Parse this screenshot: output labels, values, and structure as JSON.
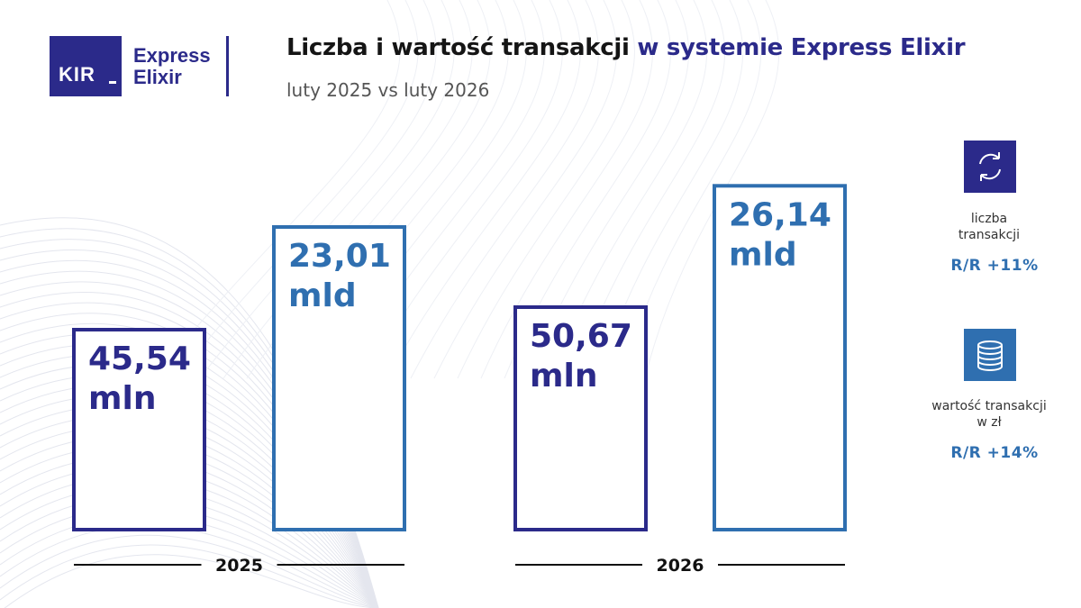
{
  "logo": {
    "kir": "KIR",
    "brand_line1": "Express",
    "brand_line2": "Elixir"
  },
  "header": {
    "title_part1": "Liczba i wartość transakcji",
    "title_part2": "w systemie Express Elixir",
    "subtitle": "luty 2025 vs luty 2026"
  },
  "colors": {
    "navy": "#2b2a8a",
    "blue": "#2f6fb0"
  },
  "chart_data": {
    "type": "bar",
    "categories": [
      "2025",
      "2026"
    ],
    "series": [
      {
        "name": "liczba transakcji",
        "values": [
          45.54,
          50.67
        ],
        "unit": "mln",
        "labels": [
          "45,54",
          "50,67"
        ],
        "color": "#2b2a8a"
      },
      {
        "name": "wartość transakcji w zł",
        "values": [
          23.01,
          26.14
        ],
        "unit": "mld",
        "labels": [
          "23,01",
          "26,14"
        ],
        "color": "#2f6fb0"
      }
    ],
    "title": "Liczba i wartość transakcji w systemie Express Elixir",
    "subtitle": "luty 2025 vs luty 2026",
    "xlabel": "",
    "ylabel": "",
    "grid": false,
    "legend": "right"
  },
  "legend": {
    "items": [
      {
        "icon": "refresh-arrows-icon",
        "line1": "liczba",
        "line2": "transakcji",
        "change": "R/R +11%"
      },
      {
        "icon": "coin-stack-icon",
        "line1": "wartość transakcji",
        "line2": "w zł",
        "change": "R/R +14%"
      }
    ]
  }
}
